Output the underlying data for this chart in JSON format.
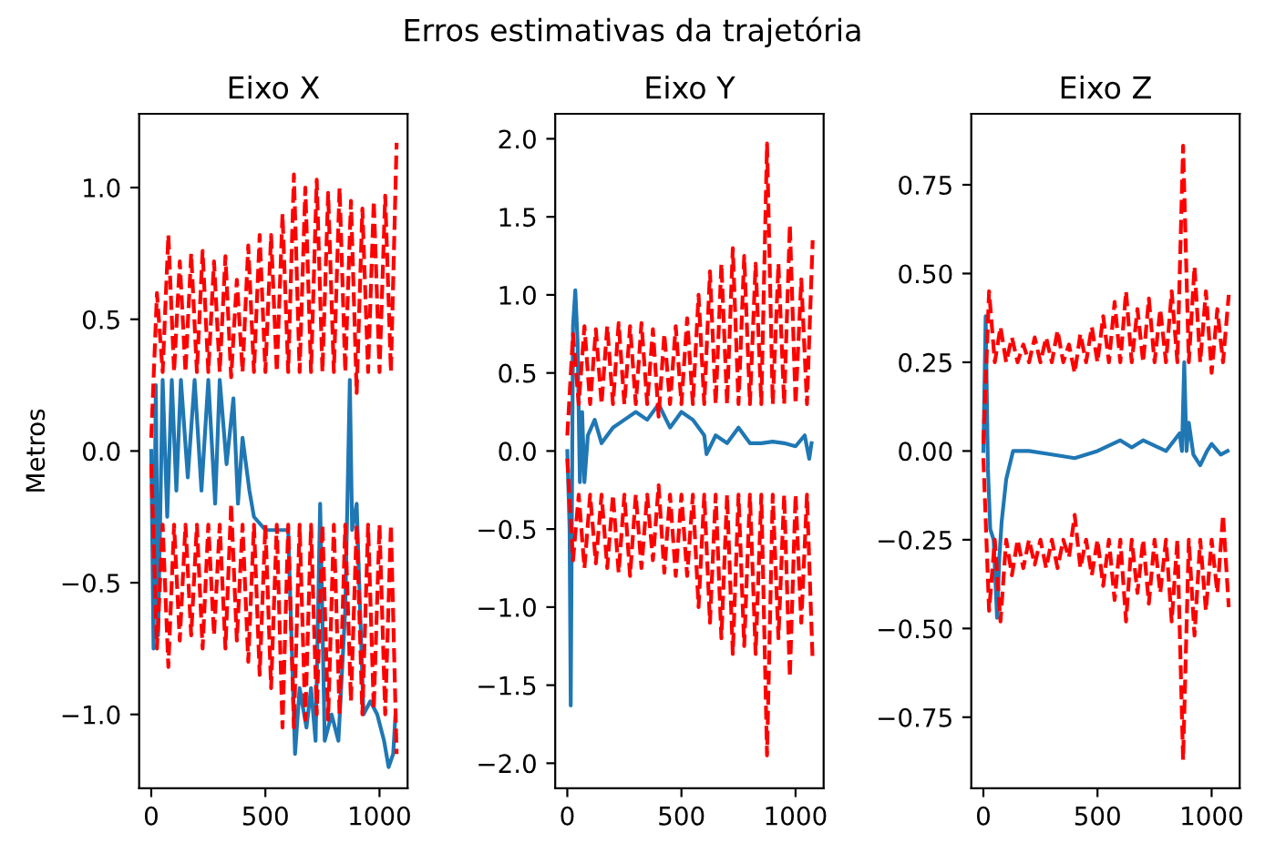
{
  "chart_data": [
    {
      "type": "line",
      "title": "Eixo X",
      "ylabel": "Metros",
      "annotations": [
        "Erros estimativas da trajetória"
      ],
      "xlim": [
        -53,
        1123
      ],
      "xticks": [
        0,
        500,
        1000
      ],
      "ylim": [
        -1.28,
        1.28
      ],
      "yticks": [
        {
          "value": -1.0,
          "label": "−1.0"
        },
        {
          "value": -0.5,
          "label": "−0.5"
        },
        {
          "value": 0.0,
          "label": "0.0"
        },
        {
          "value": 0.5,
          "label": "0.5"
        },
        {
          "value": 1.0,
          "label": "1.0"
        }
      ],
      "grid": false,
      "legend": false,
      "series": [
        {
          "color": "#1f77b4",
          "line_style": "solid",
          "x": [
            0,
            10,
            20,
            30,
            50,
            70,
            90,
            110,
            130,
            160,
            190,
            220,
            250,
            280,
            300,
            330,
            360,
            380,
            400,
            430,
            450,
            500,
            550,
            600,
            630,
            650,
            680,
            700,
            720,
            740,
            760,
            790,
            820,
            850,
            870,
            880,
            900,
            930,
            960,
            990,
            1020,
            1040,
            1060,
            1070
          ],
          "values": [
            0,
            -0.75,
            0.25,
            -0.7,
            0.27,
            -0.25,
            0.27,
            -0.15,
            0.27,
            -0.1,
            0.27,
            -0.15,
            0.27,
            -0.2,
            0.27,
            -0.05,
            0.2,
            -0.2,
            0.05,
            -0.15,
            -0.25,
            -0.3,
            -0.3,
            -0.3,
            -1.15,
            -0.9,
            -1.05,
            -0.9,
            -1.1,
            -0.2,
            -1.1,
            -1.0,
            -1.1,
            -0.6,
            0.27,
            -0.3,
            -0.2,
            -1.0,
            -0.95,
            -1.0,
            -1.1,
            -1.2,
            -1.15,
            -1.0
          ]
        },
        {
          "color": "#ff0000",
          "line_style": "dashed",
          "x": [
            0,
            25,
            50,
            75,
            100,
            125,
            150,
            175,
            200,
            225,
            250,
            275,
            300,
            325,
            350,
            375,
            400,
            425,
            450,
            475,
            500,
            525,
            550,
            575,
            600,
            625,
            650,
            675,
            700,
            725,
            750,
            775,
            800,
            825,
            850,
            875,
            900,
            925,
            950,
            975,
            1000,
            1025,
            1050,
            1075
          ],
          "values": [
            0.05,
            0.6,
            0.3,
            0.82,
            0.3,
            0.72,
            0.3,
            0.75,
            0.3,
            0.76,
            0.3,
            0.72,
            0.3,
            0.74,
            0.28,
            0.65,
            0.3,
            0.78,
            0.3,
            0.82,
            0.3,
            0.82,
            0.3,
            0.9,
            0.3,
            1.05,
            0.3,
            1.0,
            0.3,
            1.03,
            0.3,
            0.98,
            0.3,
            1.0,
            0.3,
            0.95,
            0.22,
            0.92,
            0.3,
            0.95,
            0.3,
            0.97,
            0.3,
            1.17
          ]
        },
        {
          "color": "#ff0000",
          "line_style": "dashed",
          "x": [
            0,
            25,
            50,
            75,
            100,
            125,
            150,
            175,
            200,
            225,
            250,
            275,
            300,
            325,
            350,
            375,
            400,
            425,
            450,
            475,
            500,
            525,
            550,
            575,
            600,
            625,
            650,
            675,
            700,
            725,
            750,
            775,
            800,
            825,
            850,
            875,
            900,
            925,
            950,
            975,
            1000,
            1025,
            1050,
            1075
          ],
          "values": [
            -0.05,
            -0.75,
            -0.28,
            -0.82,
            -0.28,
            -0.72,
            -0.28,
            -0.7,
            -0.28,
            -0.75,
            -0.28,
            -0.7,
            -0.28,
            -0.75,
            -0.2,
            -0.72,
            -0.28,
            -0.8,
            -0.28,
            -0.85,
            -0.28,
            -0.9,
            -0.28,
            -1.05,
            -0.28,
            -1.05,
            -0.28,
            -1.02,
            -0.28,
            -1.0,
            -0.28,
            -1.02,
            -0.28,
            -1.0,
            -0.28,
            -0.95,
            -0.28,
            -1.0,
            -0.28,
            -0.98,
            -0.28,
            -1.0,
            -0.28,
            -1.15
          ]
        }
      ]
    },
    {
      "type": "line",
      "title": "Eixo Y",
      "xlim": [
        -53,
        1123
      ],
      "xticks": [
        0,
        500,
        1000
      ],
      "ylim": [
        -2.16,
        2.16
      ],
      "yticks": [
        {
          "value": -2.0,
          "label": "−2.0"
        },
        {
          "value": -1.5,
          "label": "−1.5"
        },
        {
          "value": -1.0,
          "label": "−1.0"
        },
        {
          "value": -0.5,
          "label": "−0.5"
        },
        {
          "value": 0.0,
          "label": "0.0"
        },
        {
          "value": 0.5,
          "label": "0.5"
        },
        {
          "value": 1.0,
          "label": "1.0"
        },
        {
          "value": 1.5,
          "label": "1.5"
        },
        {
          "value": 2.0,
          "label": "2.0"
        }
      ],
      "grid": false,
      "legend": false,
      "series": [
        {
          "color": "#1f77b4",
          "line_style": "solid",
          "x": [
            0,
            10,
            15,
            25,
            35,
            45,
            55,
            65,
            75,
            90,
            120,
            150,
            200,
            250,
            300,
            350,
            400,
            450,
            500,
            550,
            600,
            610,
            650,
            700,
            750,
            800,
            850,
            900,
            950,
            1000,
            1040,
            1060,
            1070
          ],
          "values": [
            0,
            -0.5,
            -1.63,
            0.8,
            1.03,
            0.7,
            -0.2,
            0.25,
            -0.2,
            0.1,
            0.2,
            0.05,
            0.15,
            0.2,
            0.25,
            0.2,
            0.3,
            0.15,
            0.25,
            0.2,
            0.1,
            -0.02,
            0.1,
            0.05,
            0.15,
            0.05,
            0.05,
            0.06,
            0.05,
            0.03,
            0.1,
            -0.05,
            0.05
          ]
        },
        {
          "color": "#ff0000",
          "line_style": "dashed",
          "x": [
            0,
            25,
            50,
            75,
            100,
            125,
            150,
            175,
            200,
            225,
            250,
            275,
            300,
            325,
            350,
            375,
            400,
            425,
            450,
            475,
            500,
            525,
            550,
            575,
            600,
            625,
            650,
            675,
            700,
            725,
            750,
            775,
            800,
            825,
            850,
            875,
            900,
            925,
            950,
            975,
            1000,
            1025,
            1050,
            1075
          ],
          "values": [
            0.1,
            0.75,
            0.3,
            0.8,
            0.3,
            0.78,
            0.3,
            0.8,
            0.3,
            0.82,
            0.3,
            0.8,
            0.3,
            0.82,
            0.3,
            0.78,
            0.22,
            0.75,
            0.3,
            0.8,
            0.3,
            0.85,
            0.3,
            1.0,
            0.3,
            1.15,
            0.3,
            1.2,
            0.3,
            1.3,
            0.3,
            1.25,
            0.3,
            1.2,
            0.3,
            1.97,
            0.3,
            1.2,
            0.3,
            1.45,
            0.3,
            1.1,
            0.3,
            1.35
          ]
        },
        {
          "color": "#ff0000",
          "line_style": "dashed",
          "x": [
            0,
            25,
            50,
            75,
            100,
            125,
            150,
            175,
            200,
            225,
            250,
            275,
            300,
            325,
            350,
            375,
            400,
            425,
            450,
            475,
            500,
            525,
            550,
            575,
            600,
            625,
            650,
            675,
            700,
            725,
            750,
            775,
            800,
            825,
            850,
            875,
            900,
            925,
            950,
            975,
            1000,
            1025,
            1050,
            1075
          ],
          "values": [
            -0.05,
            -0.7,
            -0.28,
            -0.75,
            -0.28,
            -0.72,
            -0.28,
            -0.75,
            -0.28,
            -0.78,
            -0.28,
            -0.8,
            -0.28,
            -0.75,
            -0.28,
            -0.7,
            -0.22,
            -0.78,
            -0.28,
            -0.8,
            -0.28,
            -0.8,
            -0.28,
            -1.0,
            -0.28,
            -1.1,
            -0.28,
            -1.2,
            -0.28,
            -1.3,
            -0.28,
            -1.25,
            -0.28,
            -1.3,
            -0.28,
            -1.95,
            -0.28,
            -1.2,
            -0.28,
            -1.45,
            -0.28,
            -1.1,
            -0.28,
            -1.35
          ]
        }
      ]
    },
    {
      "type": "line",
      "title": "Eixo Z",
      "xlim": [
        -53,
        1123
      ],
      "xticks": [
        0,
        500,
        1000
      ],
      "ylim": [
        -0.95,
        0.95
      ],
      "yticks": [
        {
          "value": -0.75,
          "label": "−0.75"
        },
        {
          "value": -0.5,
          "label": "−0.50"
        },
        {
          "value": -0.25,
          "label": "−0.25"
        },
        {
          "value": 0.0,
          "label": "0.00"
        },
        {
          "value": 0.25,
          "label": "0.25"
        },
        {
          "value": 0.5,
          "label": "0.50"
        },
        {
          "value": 0.75,
          "label": "0.75"
        }
      ],
      "grid": false,
      "legend": false,
      "series": [
        {
          "color": "#1f77b4",
          "line_style": "solid",
          "x": [
            0,
            10,
            20,
            30,
            45,
            60,
            70,
            80,
            100,
            130,
            200,
            300,
            400,
            500,
            600,
            650,
            700,
            800,
            860,
            870,
            880,
            890,
            900,
            920,
            950,
            980,
            1000,
            1040,
            1070
          ],
          "values": [
            0,
            0.38,
            -0.05,
            -0.22,
            -0.25,
            -0.47,
            -0.3,
            -0.2,
            -0.08,
            0.0,
            0.0,
            -0.01,
            -0.02,
            0.0,
            0.03,
            0.01,
            0.03,
            0.0,
            0.05,
            0.0,
            0.25,
            0.0,
            0.08,
            -0.01,
            -0.04,
            0.0,
            0.02,
            -0.01,
            0.0
          ]
        },
        {
          "color": "#ff0000",
          "line_style": "dashed",
          "x": [
            0,
            25,
            50,
            75,
            100,
            125,
            150,
            175,
            200,
            225,
            250,
            275,
            300,
            325,
            350,
            375,
            400,
            425,
            450,
            475,
            500,
            525,
            550,
            575,
            600,
            625,
            650,
            675,
            700,
            725,
            750,
            775,
            800,
            825,
            850,
            875,
            900,
            925,
            950,
            975,
            1000,
            1025,
            1050,
            1075
          ],
          "values": [
            0.02,
            0.45,
            0.25,
            0.35,
            0.25,
            0.32,
            0.25,
            0.3,
            0.25,
            0.32,
            0.25,
            0.32,
            0.25,
            0.34,
            0.25,
            0.3,
            0.22,
            0.33,
            0.25,
            0.35,
            0.25,
            0.38,
            0.25,
            0.42,
            0.25,
            0.45,
            0.25,
            0.4,
            0.25,
            0.43,
            0.25,
            0.4,
            0.25,
            0.45,
            0.25,
            0.86,
            0.25,
            0.52,
            0.25,
            0.45,
            0.22,
            0.4,
            0.25,
            0.44
          ]
        },
        {
          "color": "#ff0000",
          "line_style": "dashed",
          "x": [
            0,
            25,
            50,
            75,
            100,
            125,
            150,
            175,
            200,
            225,
            250,
            275,
            300,
            325,
            350,
            375,
            400,
            425,
            450,
            475,
            500,
            525,
            550,
            575,
            600,
            625,
            650,
            675,
            700,
            725,
            750,
            775,
            800,
            825,
            850,
            875,
            900,
            925,
            950,
            975,
            1000,
            1025,
            1050,
            1075
          ],
          "values": [
            -0.02,
            -0.45,
            -0.25,
            -0.48,
            -0.25,
            -0.35,
            -0.25,
            -0.33,
            -0.25,
            -0.32,
            -0.25,
            -0.33,
            -0.25,
            -0.33,
            -0.25,
            -0.3,
            -0.18,
            -0.33,
            -0.25,
            -0.35,
            -0.25,
            -0.38,
            -0.25,
            -0.42,
            -0.25,
            -0.48,
            -0.25,
            -0.4,
            -0.25,
            -0.43,
            -0.25,
            -0.4,
            -0.25,
            -0.48,
            -0.25,
            -0.87,
            -0.25,
            -0.52,
            -0.25,
            -0.45,
            -0.25,
            -0.4,
            -0.18,
            -0.44
          ]
        }
      ]
    }
  ]
}
